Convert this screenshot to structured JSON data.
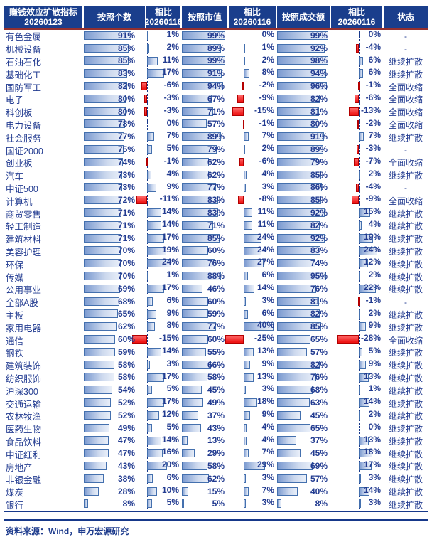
{
  "table": {
    "title_line1": "赚钱效应扩散指标",
    "title_line2": "20260123",
    "header": {
      "count": "按照个数",
      "diff1": "相比",
      "diff2": "20260116",
      "mcap": "按照市值",
      "turnover": "按照成交额",
      "status": "状态"
    }
  },
  "footer": {
    "source": "资料来源：Wind，申万宏源研究"
  },
  "colors": {
    "header_bg": "#1a3e8c",
    "header_text": "#ffffff",
    "body_text": "#233c91",
    "bar_blue": "#638ec6",
    "bar_red": "#ee1414",
    "header_underline": "#93302f"
  },
  "status_values": [
    "继续扩散",
    "全面收缩",
    "-"
  ],
  "chart_data": {
    "type": "table",
    "title": "赚钱效应扩散指标 20260123",
    "unit": "%",
    "columns": [
      "赚钱效应扩散指标 20260123",
      "按照个数",
      "相比20260116",
      "按照市值",
      "相比20260116",
      "按照成交额",
      "相比20260116",
      "状态"
    ],
    "rows": [
      [
        "有色金属",
        91,
        1,
        99,
        0,
        99,
        0,
        "-"
      ],
      [
        "机械设备",
        85,
        2,
        89,
        1,
        92,
        -4,
        "-"
      ],
      [
        "石油石化",
        85,
        11,
        99,
        2,
        98,
        6,
        "继续扩散"
      ],
      [
        "基础化工",
        83,
        17,
        91,
        8,
        94,
        6,
        "继续扩散"
      ],
      [
        "国防军工",
        82,
        -6,
        94,
        -2,
        96,
        -1,
        "全面收缩"
      ],
      [
        "电子",
        80,
        -3,
        67,
        -9,
        82,
        -6,
        "全面收缩"
      ],
      [
        "科创板",
        80,
        -3,
        71,
        -15,
        81,
        -13,
        "全面收缩"
      ],
      [
        "电力设备",
        78,
        0,
        57,
        -1,
        80,
        -2,
        "全面收缩"
      ],
      [
        "社会服务",
        77,
        7,
        89,
        7,
        91,
        7,
        "继续扩散"
      ],
      [
        "国证2000",
        75,
        5,
        79,
        2,
        89,
        -3,
        "-"
      ],
      [
        "创业板",
        74,
        -1,
        62,
        -6,
        79,
        -7,
        "全面收缩"
      ],
      [
        "汽车",
        73,
        4,
        62,
        4,
        85,
        2,
        "继续扩散"
      ],
      [
        "中证500",
        73,
        9,
        77,
        3,
        86,
        -4,
        "-"
      ],
      [
        "计算机",
        72,
        -11,
        83,
        -8,
        85,
        -9,
        "全面收缩"
      ],
      [
        "商贸零售",
        71,
        14,
        83,
        11,
        92,
        15,
        "继续扩散"
      ],
      [
        "轻工制造",
        71,
        14,
        71,
        11,
        82,
        4,
        "继续扩散"
      ],
      [
        "建筑材料",
        71,
        17,
        85,
        24,
        92,
        19,
        "继续扩散"
      ],
      [
        "美容护理",
        70,
        19,
        60,
        24,
        83,
        24,
        "继续扩散"
      ],
      [
        "环保",
        70,
        24,
        76,
        27,
        74,
        12,
        "继续扩散"
      ],
      [
        "传媒",
        70,
        1,
        88,
        6,
        95,
        2,
        "继续扩散"
      ],
      [
        "公用事业",
        69,
        17,
        46,
        14,
        76,
        22,
        "继续扩散"
      ],
      [
        "全部A股",
        68,
        6,
        60,
        3,
        81,
        -1,
        "-"
      ],
      [
        "主板",
        65,
        9,
        59,
        6,
        82,
        2,
        "继续扩散"
      ],
      [
        "家用电器",
        62,
        8,
        77,
        40,
        85,
        9,
        "继续扩散"
      ],
      [
        "通信",
        60,
        -15,
        60,
        -25,
        65,
        -28,
        "全面收缩"
      ],
      [
        "钢铁",
        59,
        14,
        55,
        13,
        57,
        5,
        "继续扩散"
      ],
      [
        "建筑装饰",
        58,
        3,
        66,
        9,
        82,
        9,
        "继续扩散"
      ],
      [
        "纺织服饰",
        58,
        17,
        58,
        13,
        76,
        13,
        "继续扩散"
      ],
      [
        "沪深300",
        54,
        5,
        45,
        3,
        68,
        1,
        "继续扩散"
      ],
      [
        "交通运输",
        52,
        17,
        49,
        18,
        63,
        14,
        "继续扩散"
      ],
      [
        "农林牧渔",
        52,
        12,
        37,
        9,
        45,
        2,
        "继续扩散"
      ],
      [
        "医药生物",
        49,
        5,
        43,
        4,
        65,
        0,
        "继续扩散"
      ],
      [
        "食品饮料",
        47,
        14,
        13,
        4,
        37,
        13,
        "继续扩散"
      ],
      [
        "中证红利",
        47,
        16,
        29,
        7,
        45,
        18,
        "继续扩散"
      ],
      [
        "房地产",
        43,
        20,
        58,
        29,
        69,
        17,
        "继续扩散"
      ],
      [
        "非银金融",
        38,
        6,
        62,
        3,
        57,
        3,
        "继续扩散"
      ],
      [
        "煤炭",
        28,
        10,
        15,
        7,
        40,
        14,
        "继续扩散"
      ],
      [
        "银行",
        8,
        5,
        5,
        3,
        8,
        3,
        "继续扩散"
      ]
    ]
  }
}
